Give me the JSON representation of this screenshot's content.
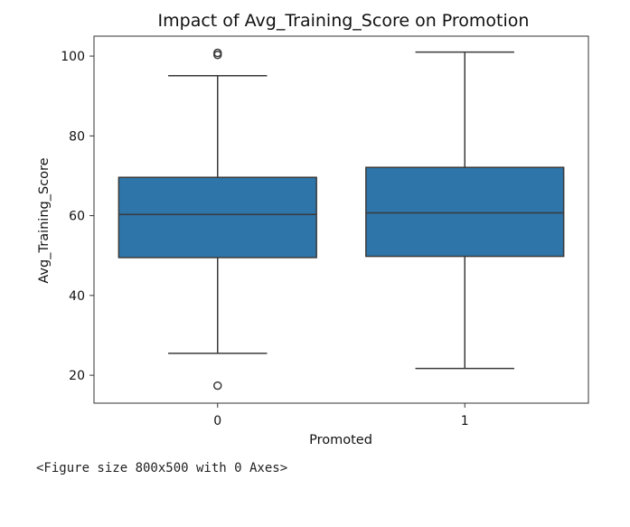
{
  "chart_data": {
    "type": "box",
    "title": "Impact of Avg_Training_Score on Promotion",
    "xlabel": "Promoted",
    "ylabel": "Avg_Training_Score",
    "categories": [
      "0",
      "1"
    ],
    "ylim": [
      13,
      105
    ],
    "yticks": [
      20,
      40,
      60,
      80,
      100
    ],
    "grid": false,
    "box_color": "#2e75aa",
    "line_color": "#3a3a3a",
    "boxes": [
      {
        "category": "0",
        "whisker_low": 25.5,
        "q1": 49.5,
        "median": 60.3,
        "q3": 69.6,
        "whisker_high": 95.1,
        "outliers": [
          17.4,
          100.3,
          100.8
        ]
      },
      {
        "category": "1",
        "whisker_low": 21.7,
        "q1": 49.8,
        "median": 60.7,
        "q3": 72.1,
        "whisker_high": 101.0,
        "outliers": []
      }
    ]
  },
  "caption": "<Figure size 800x500 with 0 Axes>"
}
